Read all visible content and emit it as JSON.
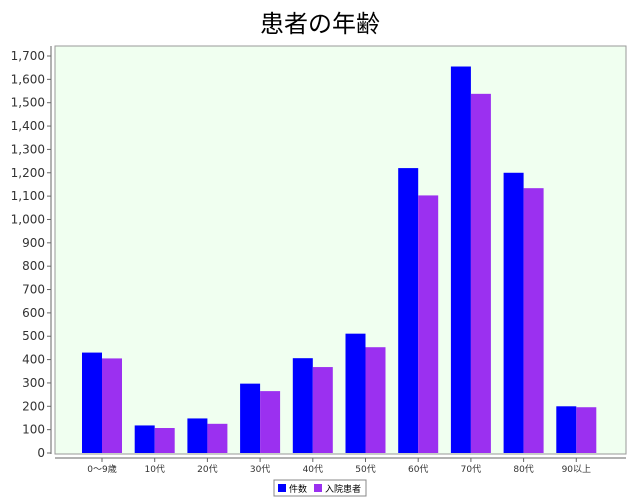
{
  "chart_data": {
    "type": "bar",
    "title": "患者の年齢",
    "xlabel": "",
    "ylabel": "",
    "ylim": [
      0,
      1750
    ],
    "yticks": [
      0,
      100,
      200,
      300,
      400,
      500,
      600,
      700,
      800,
      900,
      1000,
      1100,
      1200,
      1300,
      1400,
      1500,
      1600,
      1700
    ],
    "ytick_labels": [
      "0",
      "100",
      "200",
      "300",
      "400",
      "500",
      "600",
      "700",
      "800",
      "900",
      "1,000",
      "1,100",
      "1,200",
      "1,300",
      "1,400",
      "1,500",
      "1,600",
      "1,700"
    ],
    "categories": [
      "0～9歳",
      "10代",
      "20代",
      "30代",
      "40代",
      "50代",
      "60代",
      "70代",
      "80代",
      "90以上"
    ],
    "series": [
      {
        "name": "件数",
        "color": "#0000FF",
        "values": [
          430,
          118,
          148,
          297,
          406,
          511,
          1220,
          1655,
          1200,
          200
        ]
      },
      {
        "name": "入院患者",
        "color": "#9B30F0",
        "values": [
          405,
          107,
          125,
          265,
          368,
          453,
          1103,
          1538,
          1134,
          196
        ]
      }
    ],
    "plot_background": "#F0FFF0",
    "grid": false,
    "legend_position": "bottom-center"
  }
}
